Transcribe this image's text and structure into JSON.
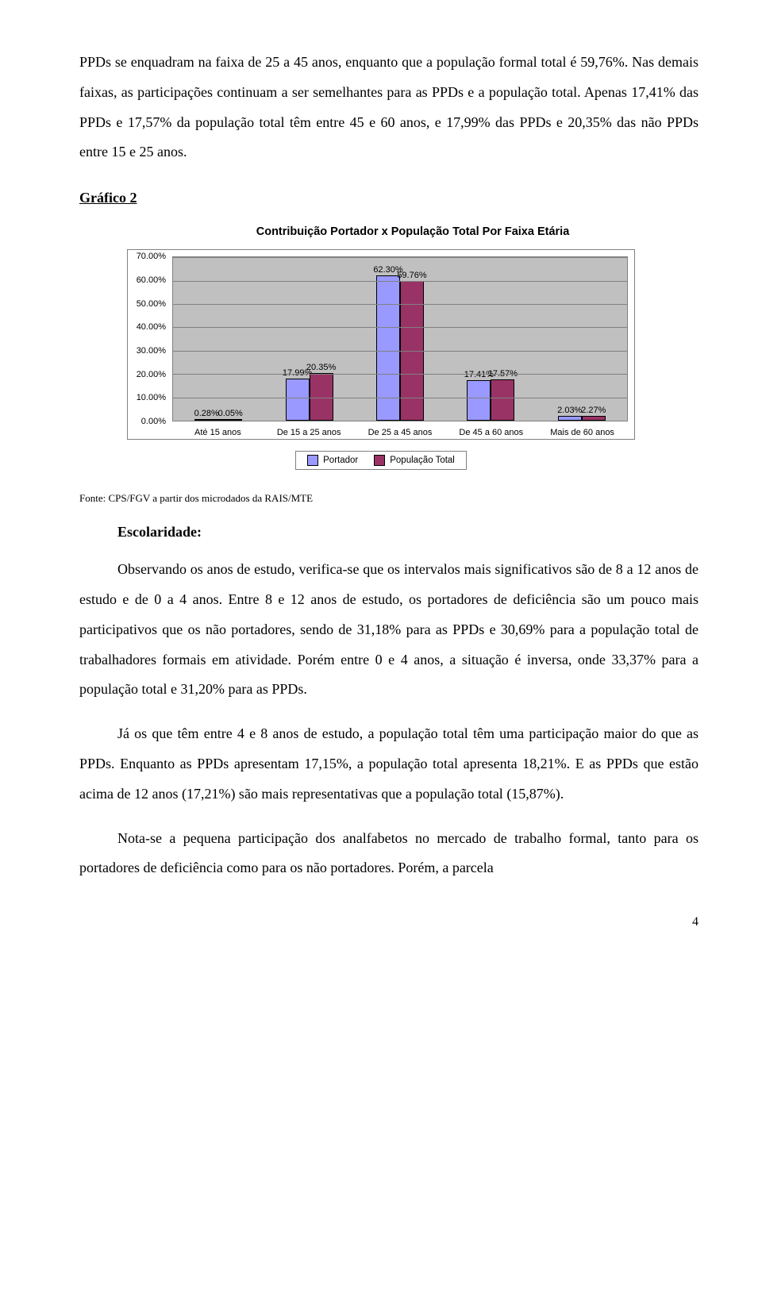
{
  "intro": {
    "p1": "PPDs se enquadram na faixa de 25 a 45 anos, enquanto que a população formal total é 59,76%. Nas demais faixas, as participações continuam a ser semelhantes para as PPDs e a população total. Apenas 17,41% das PPDs e 17,57% da população total têm entre 45 e 60 anos, e 17,99% das PPDs e 20,35% das não PPDs entre 15 e 25 anos."
  },
  "section_label": "Gráfico 2",
  "chart": {
    "title": "Contribuição Portador x População Total Por Faixa Etária",
    "y_ticks": [
      "0.00%",
      "10.00%",
      "20.00%",
      "30.00%",
      "40.00%",
      "50.00%",
      "60.00%",
      "70.00%"
    ],
    "y_max": 70,
    "categories": [
      "Até 15 anos",
      "De 15 a 25 anos",
      "De 25 a 45 anos",
      "De 45 a 60 anos",
      "Mais de 60 anos"
    ],
    "series_a_name": "Portador",
    "series_b_name": "População Total",
    "series_a": [
      0.28,
      17.99,
      62.3,
      17.41,
      2.03
    ],
    "series_b": [
      0.05,
      20.35,
      59.76,
      17.57,
      2.27
    ],
    "labels_a": [
      "0.28%",
      "17.99%",
      "62.30%",
      "17.41%",
      "2.03%"
    ],
    "labels_b": [
      "0.05%",
      "20.35%",
      "59.76%",
      "17.57%",
      "2.27%"
    ],
    "color_a": "#9999ff",
    "color_b": "#993366",
    "plot_bg": "#c0c0c0"
  },
  "source": "Fonte: CPS/FGV a partir dos microdados da RAIS/MTE",
  "subhead": "Escolaridade:",
  "body": {
    "p1": "Observando os anos de estudo, verifica-se que os intervalos mais significativos são de 8 a 12 anos de estudo e de 0 a 4 anos. Entre 8 e 12 anos de estudo, os portadores de deficiência são um pouco mais participativos que os não portadores, sendo de 31,18% para as PPDs e 30,69% para a população total de trabalhadores formais em atividade. Porém entre 0 e 4 anos, a situação é inversa, onde 33,37% para a população total e 31,20% para as PPDs.",
    "p2": "Já os que têm entre 4 e 8 anos de estudo, a população total têm uma participação maior do que as PPDs. Enquanto as PPDs apresentam 17,15%, a população total apresenta 18,21%.  E as PPDs que estão acima de 12 anos (17,21%) são mais representativas que a população total (15,87%).",
    "p3": "Nota-se a pequena participação dos analfabetos no mercado de trabalho formal, tanto para os portadores de deficiência como para os não portadores. Porém, a parcela"
  },
  "page_number": "4"
}
